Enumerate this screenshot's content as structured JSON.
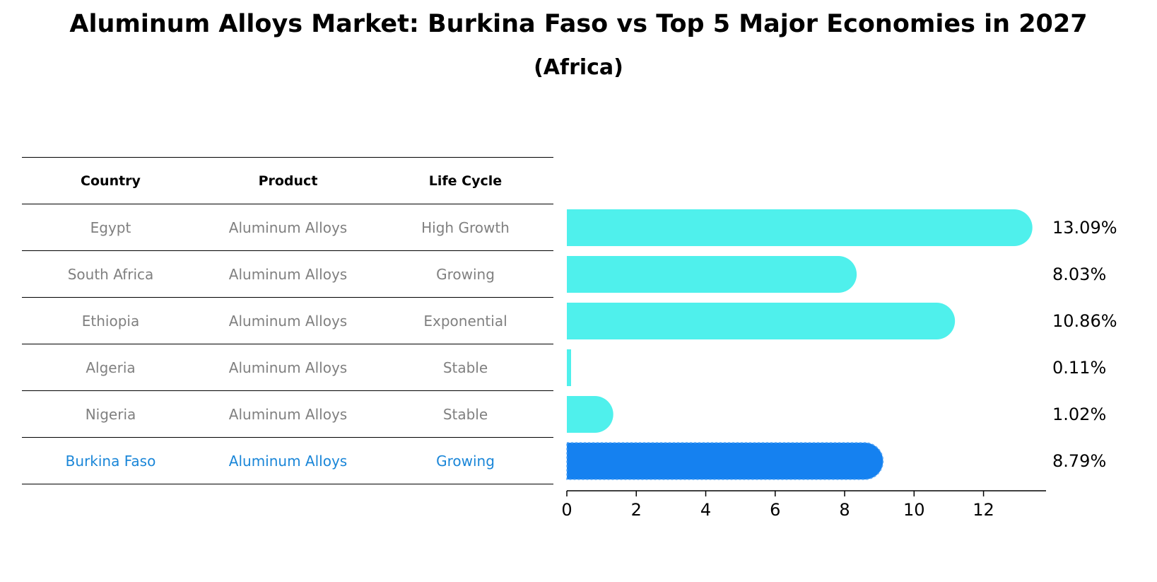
{
  "title": "Aluminum Alloys Market: Burkina Faso vs Top 5 Major Economies in 2027",
  "subtitle": "(Africa)",
  "table": {
    "headers": [
      "Country",
      "Product",
      "Life Cycle"
    ],
    "rows": [
      [
        "Egypt",
        "Aluminum Alloys",
        "High Growth"
      ],
      [
        "South Africa",
        "Aluminum Alloys",
        "Growing"
      ],
      [
        "Ethiopia",
        "Aluminum Alloys",
        "Exponential"
      ],
      [
        "Algeria",
        "Aluminum Alloys",
        "Stable"
      ],
      [
        "Nigeria",
        "Aluminum Alloys",
        "Stable"
      ],
      [
        "Burkina Faso",
        "Aluminum Alloys",
        "Growing"
      ]
    ]
  },
  "chart_data": {
    "type": "bar",
    "orientation": "horizontal",
    "title": "Aluminum Alloys Market: Burkina Faso vs Top 5 Major Economies in 2027",
    "subtitle": "(Africa)",
    "categories": [
      "Egypt",
      "South Africa",
      "Ethiopia",
      "Algeria",
      "Nigeria",
      "Burkina Faso"
    ],
    "values": [
      13.09,
      8.03,
      10.86,
      0.11,
      1.02,
      8.79
    ],
    "data_labels": [
      "13.09%",
      "8.03%",
      "10.86%",
      "0.11%",
      "1.02%",
      "8.79%"
    ],
    "highlight": "Burkina Faso",
    "xlim": [
      0,
      13.8
    ],
    "xticks": [
      0,
      2,
      4,
      6,
      8,
      10,
      12
    ],
    "xlabel": "",
    "ylabel": "",
    "grid": false,
    "colors": {
      "default": "#4ff0ec",
      "highlight": "#1581f0",
      "highlight_text": "#1a86d8",
      "muted_text": "#808080"
    }
  }
}
